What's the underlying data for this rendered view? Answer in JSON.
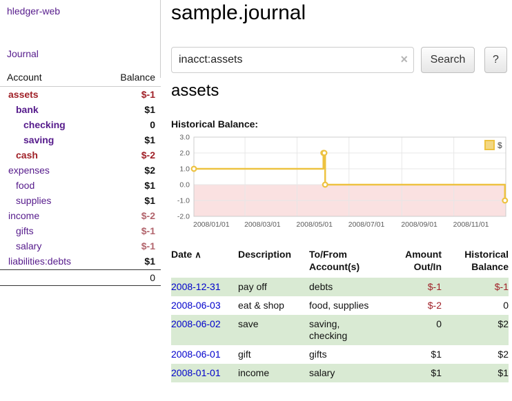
{
  "colors": {
    "link_purple": "#551a8b",
    "date_blue": "#0000cc",
    "negative": "#a02128",
    "negative_soft": "#b2646c",
    "row_shade": "#d9ead3",
    "chart_series": "#edc240",
    "chart_region": "#f5c8c8"
  },
  "app": {
    "name": "hledger-web"
  },
  "sidebar": {
    "journal_label": "Journal",
    "table": {
      "account_header": "Account",
      "balance_header": "Balance",
      "rows": [
        {
          "name": "assets",
          "balance": "$-1",
          "level": 1,
          "bold": true,
          "name_style": "negative",
          "balance_negative": true,
          "balance_soft": false
        },
        {
          "name": "bank",
          "balance": "$1",
          "level": 2,
          "bold": true,
          "name_style": "link",
          "balance_negative": false,
          "balance_soft": false
        },
        {
          "name": "checking",
          "balance": "0",
          "level": 3,
          "bold": true,
          "name_style": "link",
          "balance_negative": false,
          "balance_soft": false
        },
        {
          "name": "saving",
          "balance": "$1",
          "level": 3,
          "bold": true,
          "name_style": "link",
          "balance_negative": false,
          "balance_soft": false
        },
        {
          "name": "cash",
          "balance": "$-2",
          "level": 2,
          "bold": true,
          "name_style": "negative",
          "balance_negative": true,
          "balance_soft": false
        },
        {
          "name": "expenses",
          "balance": "$2",
          "level": 1,
          "bold": false,
          "name_style": "link",
          "balance_negative": false,
          "balance_soft": false
        },
        {
          "name": "food",
          "balance": "$1",
          "level": 2,
          "bold": false,
          "name_style": "link",
          "balance_negative": false,
          "balance_soft": false
        },
        {
          "name": "supplies",
          "balance": "$1",
          "level": 2,
          "bold": false,
          "name_style": "link",
          "balance_negative": false,
          "balance_soft": false
        },
        {
          "name": "income",
          "balance": "$-2",
          "level": 1,
          "bold": false,
          "name_style": "link",
          "balance_negative": true,
          "balance_soft": true
        },
        {
          "name": "gifts",
          "balance": "$-1",
          "level": 2,
          "bold": false,
          "name_style": "link",
          "balance_negative": true,
          "balance_soft": true
        },
        {
          "name": "salary",
          "balance": "$-1",
          "level": 2,
          "bold": false,
          "name_style": "link",
          "balance_negative": true,
          "balance_soft": true
        },
        {
          "name": "liabilities:debts",
          "balance": "$1",
          "level": 1,
          "bold": false,
          "name_style": "link",
          "balance_negative": false,
          "balance_soft": false
        }
      ],
      "total": "0"
    }
  },
  "main": {
    "title": "sample.journal",
    "search": {
      "value": "inacct:assets",
      "clear_icon": "×",
      "button_label": "Search",
      "help_label": "?"
    },
    "account_heading": "assets",
    "chart_label": "Historical Balance:"
  },
  "chart_data": {
    "type": "line",
    "title": "Historical Balance",
    "step": true,
    "grid": true,
    "legend_position": "top-right",
    "ylim": [
      -2,
      3
    ],
    "y_ticks": [
      3.0,
      2.0,
      1.0,
      0.0,
      -1.0,
      -2.0
    ],
    "x_range": [
      "2008-01-01",
      "2009-01-01"
    ],
    "x_tick_dates": [
      "2008-01-01",
      "2008-03-01",
      "2008-05-01",
      "2008-07-01",
      "2008-09-01",
      "2008-11-01"
    ],
    "x_tick_labels": [
      "2008/01/01",
      "2008/03/01",
      "2008/05/01",
      "2008/07/01",
      "2008/09/01",
      "2008/11/01"
    ],
    "series": [
      {
        "name": "$",
        "color": "#edc240",
        "points": [
          {
            "date": "2008-01-01",
            "value": 1
          },
          {
            "date": "2008-06-01",
            "value": 2
          },
          {
            "date": "2008-06-02",
            "value": 2
          },
          {
            "date": "2008-06-03",
            "value": 0
          },
          {
            "date": "2008-12-31",
            "value": -1
          }
        ]
      }
    ],
    "negative_region": {
      "from": 0,
      "to": -2,
      "color": "#f5c8c8"
    }
  },
  "transactions": {
    "headers": {
      "date": "Date",
      "sort_icon": "∧",
      "description": "Description",
      "accounts": "To/From Account(s)",
      "amount": "Amount Out/In",
      "balance": "Historical Balance"
    },
    "rows": [
      {
        "date": "2008-12-31",
        "description": "pay off",
        "accounts": "debts",
        "amount": "$-1",
        "amount_negative": true,
        "balance": "$-1",
        "balance_negative": true,
        "shaded": true
      },
      {
        "date": "2008-06-03",
        "description": "eat & shop",
        "accounts": "food, supplies",
        "amount": "$-2",
        "amount_negative": true,
        "balance": "0",
        "balance_negative": false,
        "shaded": false
      },
      {
        "date": "2008-06-02",
        "description": "save",
        "accounts": "saving, checking",
        "amount": "0",
        "amount_negative": false,
        "balance": "$2",
        "balance_negative": false,
        "shaded": true
      },
      {
        "date": "2008-06-01",
        "description": "gift",
        "accounts": "gifts",
        "amount": "$1",
        "amount_negative": false,
        "balance": "$2",
        "balance_negative": false,
        "shaded": false
      },
      {
        "date": "2008-01-01",
        "description": "income",
        "accounts": "salary",
        "amount": "$1",
        "amount_negative": false,
        "balance": "$1",
        "balance_negative": false,
        "shaded": true
      }
    ]
  }
}
